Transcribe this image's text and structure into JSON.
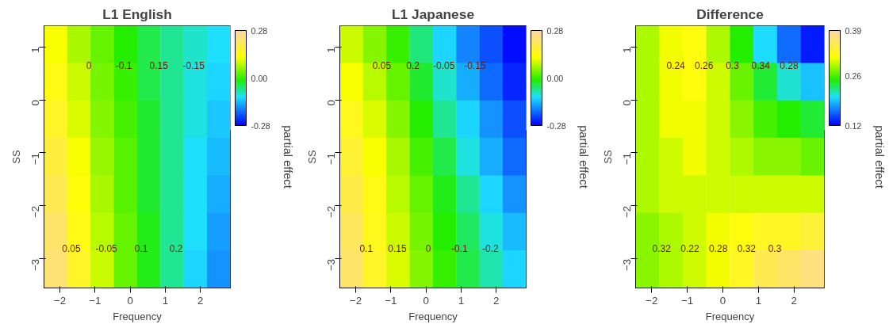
{
  "chart_data": [
    {
      "type": "heatmap",
      "title": "L1 English",
      "xlabel": "Frequency",
      "ylabel": "SS",
      "clabel": "partial effect",
      "xlim": [
        -2.45,
        2.85
      ],
      "ylim": [
        -3.55,
        1.4
      ],
      "xticks": [
        -2,
        -1,
        0,
        1,
        2
      ],
      "yticks": [
        -3,
        -2,
        -1,
        0,
        1
      ],
      "clim": [
        -0.28,
        0.28
      ],
      "cticks": [
        {
          "value": -0.28,
          "label": "-0.28"
        },
        {
          "value": 0,
          "label": "0.00"
        },
        {
          "value": 0.28,
          "label": "0.28"
        }
      ],
      "cells": [
        [
          0.12,
          0.07,
          0.03,
          -0.01,
          -0.04,
          -0.07,
          -0.09,
          -0.11
        ],
        [
          0.14,
          0.09,
          0.04,
          0.0,
          -0.04,
          -0.07,
          -0.1,
          -0.12
        ],
        [
          0.16,
          0.1,
          0.05,
          0.01,
          -0.03,
          -0.07,
          -0.1,
          -0.13
        ],
        [
          0.18,
          0.12,
          0.06,
          0.02,
          -0.03,
          -0.07,
          -0.11,
          -0.14
        ],
        [
          0.2,
          0.13,
          0.07,
          0.02,
          -0.03,
          -0.07,
          -0.11,
          -0.15
        ],
        [
          0.22,
          0.14,
          0.08,
          0.03,
          -0.02,
          -0.07,
          -0.11,
          -0.16
        ],
        [
          0.23,
          0.16,
          0.09,
          0.03,
          -0.02,
          -0.07,
          -0.12,
          -0.17
        ]
      ],
      "annotations": [
        "0.05",
        "0",
        "-0.05",
        "-0.1",
        "0.1",
        "0.15",
        "0.2",
        "-0.15"
      ]
    },
    {
      "type": "heatmap",
      "title": "L1 Japanese",
      "xlabel": "Frequency",
      "ylabel": "SS",
      "clabel": "partial effect",
      "xlim": [
        -2.45,
        2.85
      ],
      "ylim": [
        -3.55,
        1.4
      ],
      "xticks": [
        -2,
        -1,
        0,
        1,
        2
      ],
      "yticks": [
        -3,
        -2,
        -1,
        0,
        1
      ],
      "clim": [
        -0.28,
        0.28
      ],
      "cticks": [
        {
          "value": -0.28,
          "label": "-0.28"
        },
        {
          "value": 0,
          "label": "0.00"
        },
        {
          "value": 0.28,
          "label": "0.28"
        }
      ],
      "cells": [
        [
          0.09,
          0.05,
          0.0,
          -0.06,
          -0.12,
          -0.18,
          -0.22,
          -0.27
        ],
        [
          0.12,
          0.08,
          0.03,
          -0.03,
          -0.09,
          -0.15,
          -0.2,
          -0.25
        ],
        [
          0.15,
          0.1,
          0.05,
          -0.01,
          -0.07,
          -0.12,
          -0.17,
          -0.22
        ],
        [
          0.17,
          0.12,
          0.07,
          0.01,
          -0.04,
          -0.1,
          -0.15,
          -0.2
        ],
        [
          0.19,
          0.14,
          0.08,
          0.03,
          -0.02,
          -0.07,
          -0.12,
          -0.17
        ],
        [
          0.21,
          0.15,
          0.09,
          0.04,
          -0.01,
          -0.05,
          -0.1,
          -0.14
        ],
        [
          0.22,
          0.16,
          0.1,
          0.05,
          0.0,
          -0.04,
          -0.08,
          -0.12
        ]
      ],
      "annotations": [
        "0.1",
        "0.05",
        "0.15",
        "0.2",
        "0",
        "-0.05",
        "-0.1",
        "-0.15",
        "-0.2"
      ]
    },
    {
      "type": "heatmap",
      "title": "Difference",
      "xlabel": "Frequency",
      "ylabel": "SS",
      "clabel": "partial effect",
      "xlim": [
        -2.45,
        2.85
      ],
      "ylim": [
        -3.55,
        1.4
      ],
      "xticks": [
        -2,
        -1,
        0,
        1,
        2
      ],
      "yticks": [
        -3,
        -2,
        -1,
        0,
        1
      ],
      "clim": [
        0.12,
        0.39
      ],
      "cticks": [
        0.12,
        0.26,
        0.39
      ],
      "cells": [
        [
          0.29,
          0.31,
          0.32,
          0.29,
          0.25,
          0.2,
          0.16,
          0.13
        ],
        [
          0.29,
          0.31,
          0.32,
          0.3,
          0.27,
          0.24,
          0.21,
          0.19
        ],
        [
          0.29,
          0.31,
          0.31,
          0.3,
          0.28,
          0.26,
          0.25,
          0.24
        ],
        [
          0.29,
          0.3,
          0.31,
          0.3,
          0.29,
          0.28,
          0.28,
          0.27
        ],
        [
          0.29,
          0.3,
          0.3,
          0.3,
          0.3,
          0.3,
          0.3,
          0.3
        ],
        [
          0.28,
          0.29,
          0.3,
          0.31,
          0.32,
          0.33,
          0.33,
          0.34
        ],
        [
          0.28,
          0.29,
          0.3,
          0.31,
          0.33,
          0.35,
          0.36,
          0.37
        ]
      ],
      "annotations": [
        "0.32",
        "0.24",
        "0.22",
        "0.26",
        "0.28",
        "0.3",
        "0.32",
        "0.34",
        "0.3",
        "0.28"
      ]
    }
  ]
}
